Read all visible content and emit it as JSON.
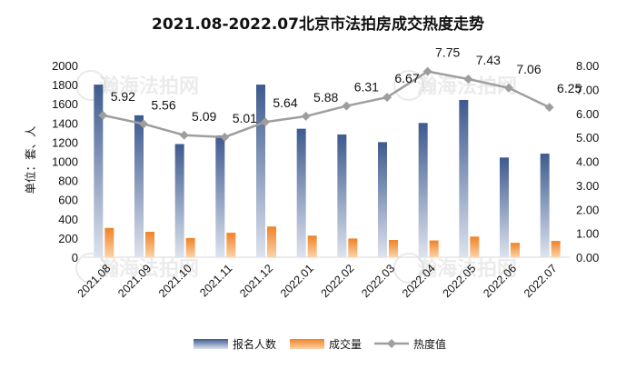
{
  "chart_data": {
    "type": "bar",
    "title": "2021.08-2022.07北京市法拍房成交热度走势",
    "ylabel": "单位：套、人",
    "categories": [
      "2021.08",
      "2021.09",
      "2021.10",
      "2021.11",
      "2021.12",
      "2022.01",
      "2022.02",
      "2022.03",
      "2022.04",
      "2022.05",
      "2022.06",
      "2022.07"
    ],
    "ylim": [
      0,
      2000
    ],
    "y_ticks": [
      "0",
      "200",
      "400",
      "600",
      "800",
      "1000",
      "1200",
      "1400",
      "1600",
      "1800",
      "2000"
    ],
    "y2lim": [
      0,
      8
    ],
    "y2_ticks": [
      "0.00",
      "1.00",
      "2.00",
      "3.00",
      "4.00",
      "5.00",
      "6.00",
      "7.00",
      "8.00"
    ],
    "series": [
      {
        "name": "报名人数",
        "kind": "bar",
        "color": "#4a6496",
        "values": [
          1800,
          1480,
          1180,
          1270,
          1800,
          1340,
          1280,
          1200,
          1400,
          1640,
          1040,
          1080
        ]
      },
      {
        "name": "成交量",
        "kind": "bar",
        "color": "#f08a2a",
        "values": [
          305,
          265,
          200,
          255,
          320,
          225,
          195,
          180,
          175,
          215,
          150,
          170
        ]
      },
      {
        "name": "热度值",
        "kind": "line",
        "axis": "right",
        "color": "#9e9e9e",
        "values": [
          5.92,
          5.56,
          5.09,
          5.01,
          5.64,
          5.88,
          6.31,
          6.67,
          7.75,
          7.43,
          7.06,
          6.25
        ],
        "labels": [
          "5.92",
          "5.56",
          "5.09",
          "5.01",
          "5.64",
          "5.88",
          "6.31",
          "6.67",
          "7.75",
          "7.43",
          "7.06",
          "6.25"
        ]
      }
    ],
    "legend_position": "bottom",
    "grid": false
  },
  "watermark": {
    "text": "瀚海法拍网",
    "url": "www.fapai.cn"
  }
}
